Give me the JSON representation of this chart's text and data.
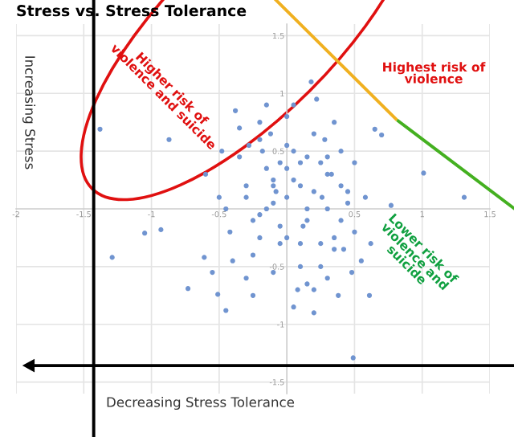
{
  "chart_data": {
    "type": "scatter",
    "title": "Stress vs. Stress Tolerance",
    "xlabel": "Decreasing Stress Tolerance",
    "ylabel": "Increasing Stress",
    "annotations": [
      "Higher risk of\nviolence and suicide",
      "Highest risk of\nviolence",
      "Lower risk of\nviolence and\nsuicide"
    ],
    "xlim": [
      -2,
      1.5
    ],
    "ylim": [
      -1.6,
      1.6
    ],
    "xticks": [
      -2,
      -1.5,
      -1,
      -0.5,
      0.5,
      1,
      1.5
    ],
    "yticks": [
      -1.5,
      -1,
      -0.5,
      0.5,
      1,
      1.5
    ],
    "grid": true,
    "marker": "circle",
    "series": [
      {
        "color": "#7094d0",
        "x": [
          -1.38,
          -1.29,
          -1.05,
          -0.93,
          0.18,
          0.65,
          0.7,
          1.01,
          1.31,
          0.77,
          0.61,
          0.49,
          -0.45,
          -0.73,
          -0.51,
          -0.61,
          -0.87,
          -0.6,
          -0.5,
          -0.42,
          -0.35,
          -0.3,
          -0.25,
          -0.2,
          -0.15,
          -0.1,
          -0.05,
          0.0,
          0.05,
          0.1,
          0.15,
          0.2,
          0.25,
          0.3,
          0.35,
          0.4,
          0.45,
          0.5,
          -0.4,
          -0.3,
          -0.2,
          -0.1,
          0.0,
          0.1,
          0.2,
          0.3,
          0.4,
          0.5,
          0.55,
          -0.45,
          -0.35,
          -0.25,
          -0.15,
          -0.05,
          0.05,
          0.15,
          0.25,
          0.35,
          0.45,
          -0.3,
          -0.2,
          -0.1,
          0.0,
          0.1,
          0.2,
          0.3,
          0.4,
          -0.25,
          -0.15,
          -0.05,
          0.05,
          0.15,
          0.25,
          0.35,
          -0.2,
          -0.1,
          0.0,
          0.1,
          0.2,
          0.3,
          0.05,
          0.12,
          -0.08,
          0.28,
          0.38,
          -0.38,
          0.58,
          0.48,
          -0.55,
          -0.48,
          0.62,
          0.22,
          -0.12,
          0.08,
          0.33,
          -0.28,
          0.15,
          0.42,
          0.0,
          -0.18,
          0.26
        ],
        "values": [
          0.69,
          -0.42,
          -0.21,
          -0.18,
          1.1,
          0.69,
          0.64,
          0.31,
          0.1,
          0.03,
          -0.75,
          -1.29,
          -0.88,
          -0.69,
          -0.74,
          -0.42,
          0.6,
          0.3,
          0.1,
          -0.2,
          0.45,
          0.2,
          -0.1,
          0.6,
          0.35,
          0.05,
          -0.3,
          0.8,
          0.5,
          0.2,
          -0.1,
          0.65,
          0.4,
          0.0,
          -0.35,
          0.5,
          0.15,
          -0.2,
          -0.45,
          -0.6,
          -0.25,
          0.25,
          0.1,
          -0.5,
          -0.7,
          0.3,
          -0.1,
          0.4,
          -0.45,
          0.0,
          0.7,
          -0.4,
          0.9,
          -0.15,
          0.9,
          0.45,
          -0.3,
          0.75,
          0.05,
          0.1,
          0.75,
          -0.55,
          0.55,
          -0.3,
          0.15,
          -0.6,
          0.2,
          -0.75,
          0.0,
          0.4,
          -0.85,
          0.0,
          -0.5,
          -0.25,
          -0.05,
          0.2,
          -0.25,
          0.4,
          -0.9,
          0.45,
          0.25,
          -0.15,
          0.15,
          0.6,
          -0.75,
          0.85,
          0.1,
          -0.55,
          -0.55,
          0.5,
          -0.3,
          0.95,
          0.65,
          -0.7,
          0.3,
          0.55,
          -0.65,
          -0.35,
          0.35,
          0.5,
          0.1
        ]
      }
    ]
  }
}
